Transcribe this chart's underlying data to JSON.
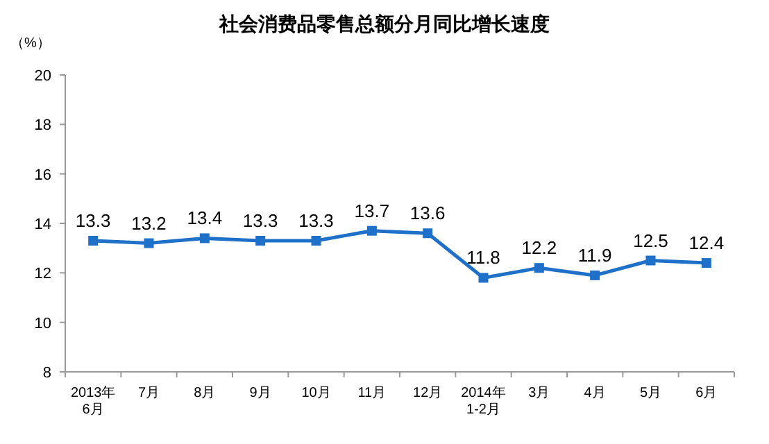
{
  "chart_data": {
    "type": "line",
    "title": "社会消费品零售总额分月同比增长速度",
    "ylabel": "（%）",
    "categories": [
      "2013年\n6月",
      "7月",
      "8月",
      "9月",
      "10月",
      "11月",
      "12月",
      "2014年\n1-2月",
      "3月",
      "4月",
      "5月",
      "6月"
    ],
    "values": [
      13.3,
      13.2,
      13.4,
      13.3,
      13.3,
      13.7,
      13.6,
      11.8,
      12.2,
      11.9,
      12.5,
      12.4
    ],
    "color": "#1f70c8",
    "marker": "square",
    "line_style": "solid",
    "data_labels": true,
    "grid": false,
    "ylim": [
      8,
      20
    ],
    "yticks": [
      8,
      10,
      12,
      14,
      16,
      18,
      20
    ]
  }
}
